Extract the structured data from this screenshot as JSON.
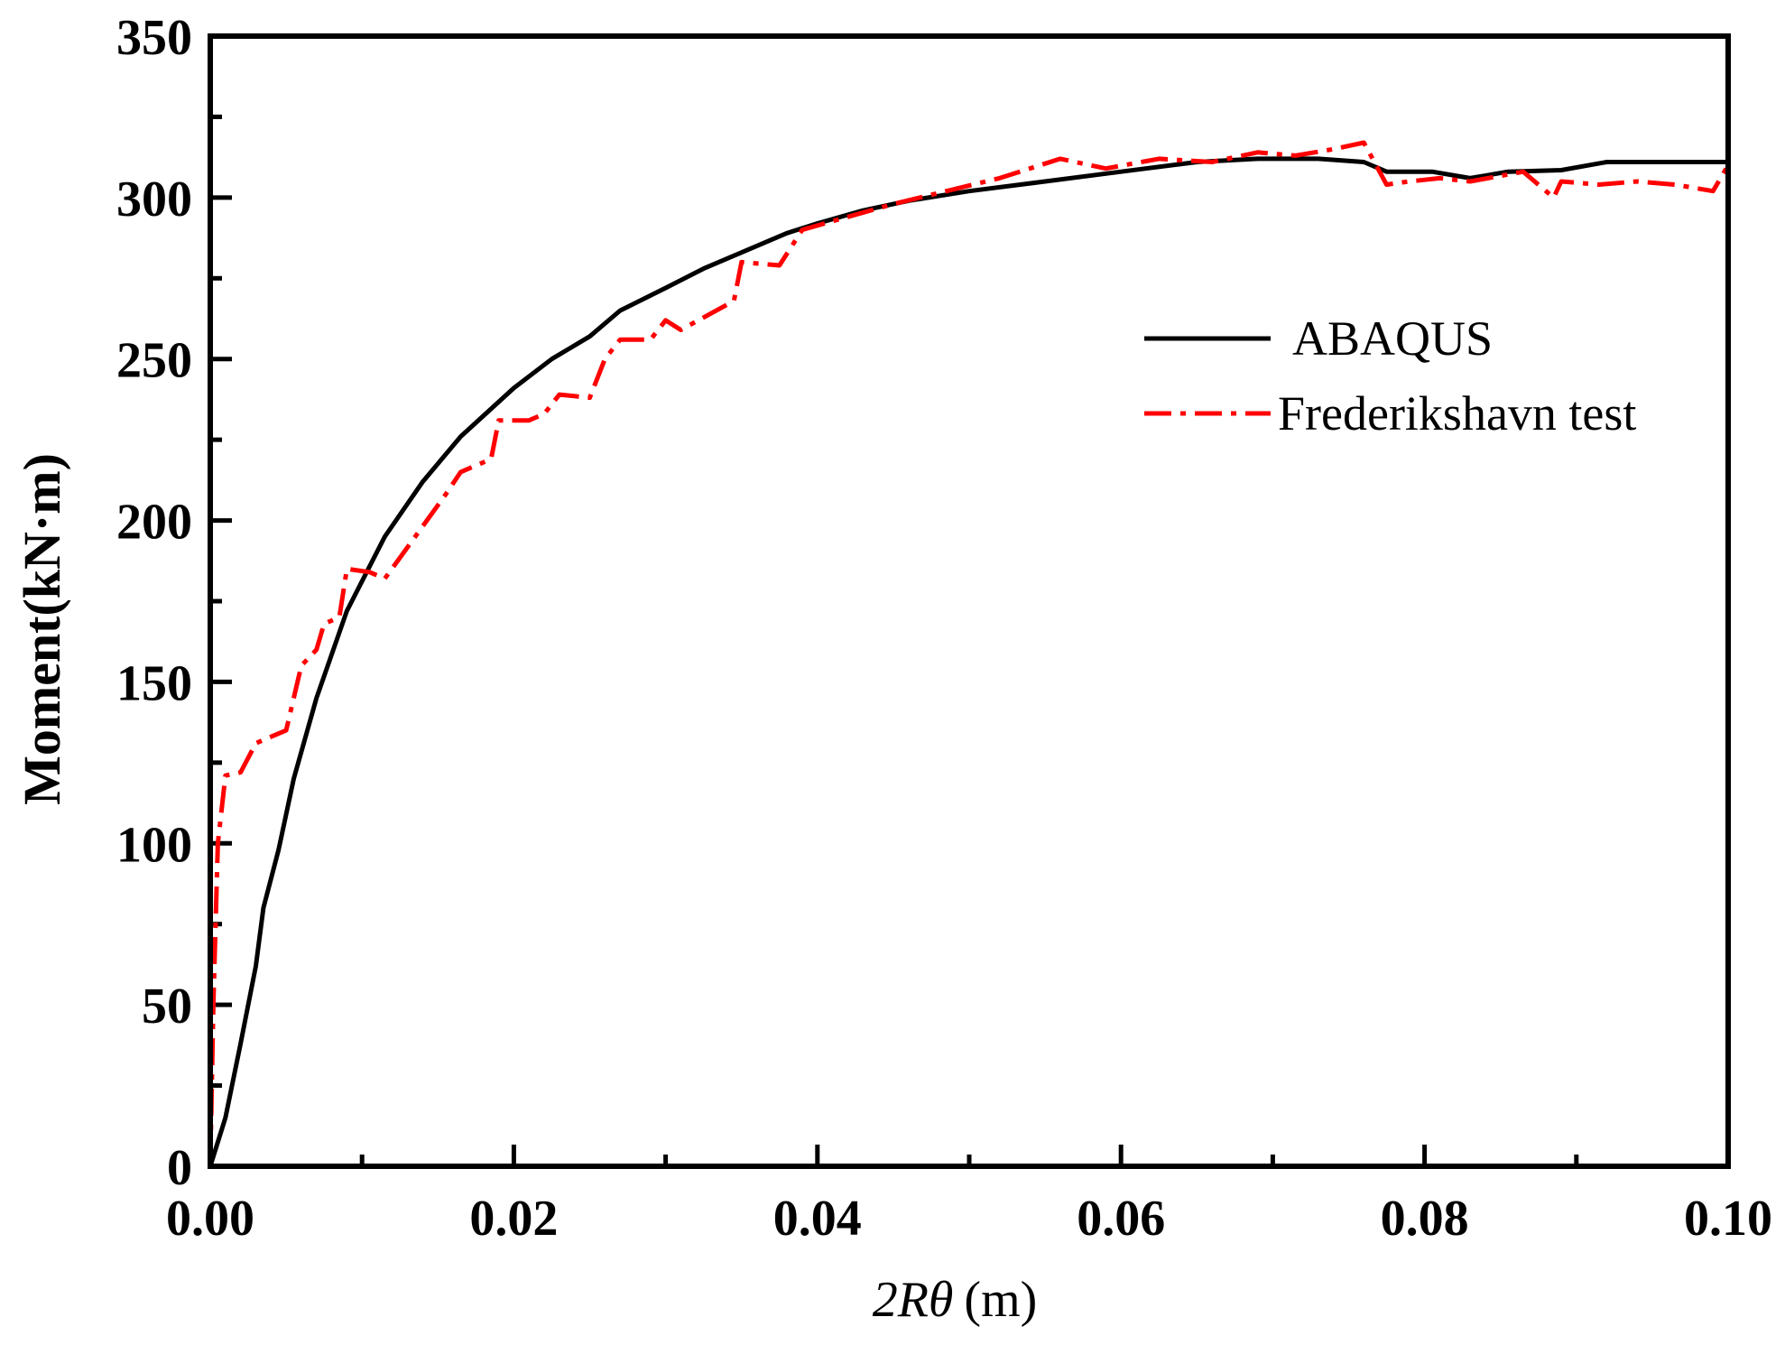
{
  "chart_data": {
    "type": "line",
    "xlabel": {
      "italic": "2Rθ",
      "unit": "(m)"
    },
    "ylabel": "Moment(kN·m)",
    "xlim": [
      0,
      0.1
    ],
    "ylim": [
      0,
      350
    ],
    "x_ticks": [
      0.0,
      0.02,
      0.04,
      0.06,
      0.08,
      0.1
    ],
    "x_tick_labels": [
      "0.00",
      "0.02",
      "0.04",
      "0.06",
      "0.08",
      "0.10"
    ],
    "y_ticks": [
      0,
      50,
      100,
      150,
      200,
      250,
      300,
      350
    ],
    "y_tick_labels": [
      "0",
      "50",
      "100",
      "150",
      "200",
      "250",
      "300",
      "350"
    ],
    "grid": false,
    "legend_position": "right",
    "series": [
      {
        "name": "ABAQUS",
        "color": "#000000",
        "dash": "solid",
        "points": [
          [
            0.0,
            0
          ],
          [
            0.001,
            15
          ],
          [
            0.002,
            38
          ],
          [
            0.003,
            62
          ],
          [
            0.0035,
            80
          ],
          [
            0.0045,
            98
          ],
          [
            0.0055,
            120
          ],
          [
            0.007,
            145
          ],
          [
            0.009,
            172
          ],
          [
            0.0115,
            195
          ],
          [
            0.014,
            212
          ],
          [
            0.0165,
            226
          ],
          [
            0.02,
            241
          ],
          [
            0.0225,
            250
          ],
          [
            0.025,
            257
          ],
          [
            0.027,
            265
          ],
          [
            0.03,
            272
          ],
          [
            0.0325,
            278
          ],
          [
            0.035,
            283
          ],
          [
            0.038,
            289
          ],
          [
            0.04,
            292
          ],
          [
            0.043,
            296
          ],
          [
            0.046,
            299
          ],
          [
            0.05,
            302
          ],
          [
            0.055,
            305
          ],
          [
            0.06,
            308
          ],
          [
            0.065,
            311
          ],
          [
            0.069,
            312
          ],
          [
            0.073,
            312
          ],
          [
            0.076,
            311
          ],
          [
            0.0775,
            308
          ],
          [
            0.0805,
            308
          ],
          [
            0.083,
            306
          ],
          [
            0.0855,
            308
          ],
          [
            0.089,
            308.5
          ],
          [
            0.092,
            311
          ],
          [
            0.1,
            311
          ]
        ]
      },
      {
        "name": "Frederikshavn test",
        "color": "#ff0000",
        "dash": "dash-dot",
        "points": [
          [
            0.0,
            0
          ],
          [
            0.0002,
            50
          ],
          [
            0.0005,
            100
          ],
          [
            0.001,
            121
          ],
          [
            0.002,
            122
          ],
          [
            0.003,
            131
          ],
          [
            0.004,
            133
          ],
          [
            0.005,
            135
          ],
          [
            0.006,
            155
          ],
          [
            0.007,
            160
          ],
          [
            0.0075,
            168
          ],
          [
            0.0085,
            170
          ],
          [
            0.009,
            185
          ],
          [
            0.0105,
            184
          ],
          [
            0.0115,
            182
          ],
          [
            0.0135,
            195
          ],
          [
            0.0155,
            208
          ],
          [
            0.0165,
            215
          ],
          [
            0.0185,
            219
          ],
          [
            0.019,
            231
          ],
          [
            0.021,
            231
          ],
          [
            0.022,
            233
          ],
          [
            0.023,
            239
          ],
          [
            0.025,
            238
          ],
          [
            0.026,
            250
          ],
          [
            0.027,
            256
          ],
          [
            0.029,
            256
          ],
          [
            0.03,
            262
          ],
          [
            0.031,
            259
          ],
          [
            0.0345,
            268
          ],
          [
            0.035,
            280
          ],
          [
            0.0375,
            279
          ],
          [
            0.039,
            290
          ],
          [
            0.042,
            294
          ],
          [
            0.045,
            298
          ],
          [
            0.0485,
            302
          ],
          [
            0.052,
            306
          ],
          [
            0.056,
            312
          ],
          [
            0.059,
            309
          ],
          [
            0.0625,
            312
          ],
          [
            0.066,
            311
          ],
          [
            0.069,
            314
          ],
          [
            0.0715,
            313
          ],
          [
            0.074,
            315
          ],
          [
            0.076,
            317
          ],
          [
            0.0775,
            304
          ],
          [
            0.079,
            305
          ],
          [
            0.081,
            306
          ],
          [
            0.083,
            305
          ],
          [
            0.0865,
            308
          ],
          [
            0.0885,
            300
          ],
          [
            0.089,
            305
          ],
          [
            0.0915,
            304
          ],
          [
            0.094,
            305
          ],
          [
            0.0965,
            304
          ],
          [
            0.099,
            302
          ],
          [
            0.1,
            310
          ]
        ]
      }
    ]
  }
}
